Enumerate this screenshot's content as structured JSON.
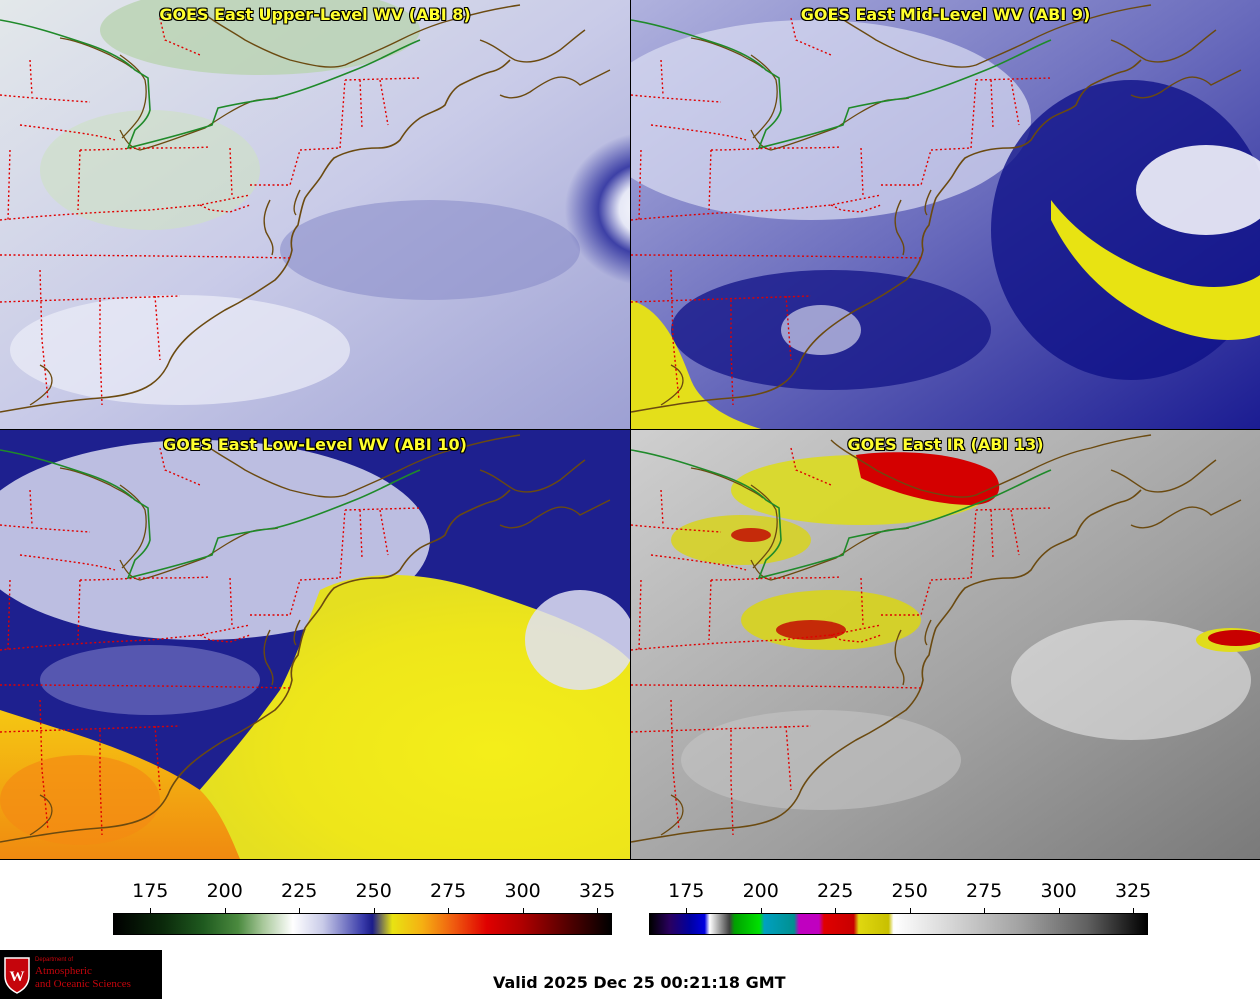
{
  "panels": {
    "upper": {
      "title": "GOES East Upper-Level WV (ABI 8)"
    },
    "mid": {
      "title": "GOES East Mid-Level WV (ABI 9)"
    },
    "low": {
      "title": "GOES East Low-Level WV (ABI 10)"
    },
    "ir": {
      "title": "GOES East IR (ABI 13)"
    }
  },
  "colorbars": {
    "wv": {
      "ticks": [
        "175",
        "200",
        "225",
        "250",
        "275",
        "300",
        "325"
      ]
    },
    "ir": {
      "ticks": [
        "175",
        "200",
        "225",
        "250",
        "275",
        "300",
        "325"
      ]
    }
  },
  "logo": {
    "department": "Department of",
    "line1": "Atmospheric",
    "line2": "and Oceanic Sciences"
  },
  "valid_time": "Valid 2025 Dec 25 00:21:18 GMT",
  "colors": {
    "border_state": "#e00000",
    "coastline": "#6b4a10",
    "title": "#ffff2e"
  }
}
